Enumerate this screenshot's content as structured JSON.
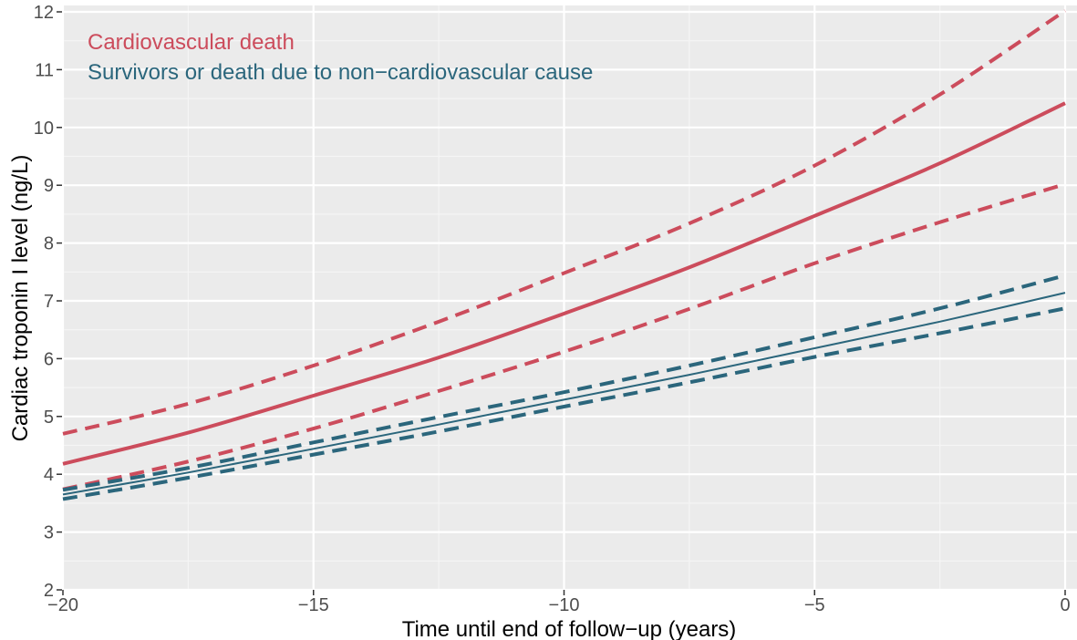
{
  "chart_data": {
    "type": "line",
    "xlabel": "Time until end of follow−up (years)",
    "ylabel": "Cardiac troponin I level (ng/L)",
    "xlim": [
      -20,
      0
    ],
    "ylim": [
      2,
      12
    ],
    "x_ticks": [
      -20,
      -15,
      -10,
      -5,
      0
    ],
    "x_tick_labels": [
      "−20",
      "−15",
      "−10",
      "−5",
      "0"
    ],
    "y_ticks": [
      2,
      3,
      4,
      5,
      6,
      7,
      8,
      9,
      10,
      11,
      12
    ],
    "y_tick_labels": [
      "2",
      "3",
      "4",
      "5",
      "6",
      "7",
      "8",
      "9",
      "10",
      "11",
      "12"
    ],
    "grid": true,
    "legend_position": "top-left",
    "series": [
      {
        "name": "Cardiovascular death",
        "color": "#CC4C5C",
        "x": [
          -20,
          -17.5,
          -15,
          -12.5,
          -10,
          -7.5,
          -5,
          -2.5,
          0
        ],
        "estimate": [
          4.18,
          4.72,
          5.36,
          6.02,
          6.78,
          7.58,
          8.47,
          9.38,
          10.42
        ],
        "lower": [
          3.74,
          4.22,
          4.79,
          5.44,
          6.12,
          6.86,
          7.65,
          8.36,
          9.02
        ],
        "upper": [
          4.7,
          5.22,
          5.88,
          6.64,
          7.48,
          8.34,
          9.34,
          10.57,
          12.02
        ]
      },
      {
        "name": "Survivors or death due to non−cardiovascular cause",
        "color": "#2B667C",
        "x": [
          -20,
          -17.5,
          -15,
          -12.5,
          -10,
          -7.5,
          -5,
          -2.5,
          0
        ],
        "estimate": [
          3.65,
          4.03,
          4.44,
          4.86,
          5.29,
          5.72,
          6.18,
          6.64,
          7.14
        ],
        "lower": [
          3.57,
          3.94,
          4.34,
          4.74,
          5.17,
          5.59,
          6.03,
          6.44,
          6.87
        ],
        "upper": [
          3.73,
          4.11,
          4.55,
          4.99,
          5.42,
          5.88,
          6.37,
          6.87,
          7.44
        ]
      }
    ]
  }
}
